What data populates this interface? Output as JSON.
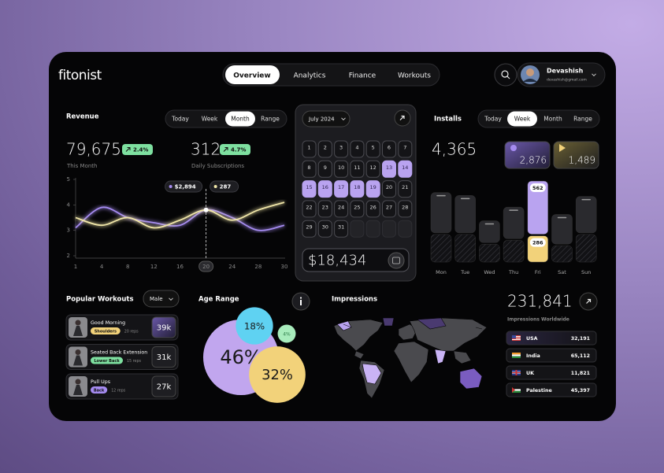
{
  "header": {
    "logo": "fitonist",
    "nav": [
      "Overview",
      "Analytics",
      "Finance",
      "Workouts"
    ],
    "nav_active": 0,
    "user": {
      "name": "Devashish",
      "email": "devashish@gmail.com"
    }
  },
  "revenue": {
    "title": "Revenue",
    "tabs": [
      "Today",
      "Week",
      "Month",
      "Range"
    ],
    "tab_active": 2,
    "kpis": [
      {
        "value": "79,675",
        "change": "2.4%",
        "label": "This Month"
      },
      {
        "value": "312",
        "change": "4.7%",
        "label": "Daily Subscriptions"
      }
    ]
  },
  "calendar": {
    "month": "July 2024",
    "days": [
      1,
      2,
      3,
      4,
      5,
      6,
      7,
      8,
      9,
      10,
      11,
      12,
      13,
      14,
      15,
      16,
      17,
      18,
      19,
      20,
      21,
      22,
      23,
      24,
      25,
      26,
      27,
      28,
      29,
      30,
      31
    ],
    "range": [
      13,
      19
    ],
    "total": "$18,434"
  },
  "installs": {
    "title": "Installs",
    "tabs": [
      "Today",
      "Week",
      "Month",
      "Range"
    ],
    "tab_active": 1,
    "total": "4,365",
    "stores": [
      {
        "value": "2,876"
      },
      {
        "value": "1,489"
      }
    ]
  },
  "workouts": {
    "title": "Popular Workouts",
    "filter": "Male",
    "items": [
      {
        "name": "Good Morning",
        "tag": "Shoulders",
        "tag_color": "#f2d27a",
        "reps": "20 reps",
        "count": "39k"
      },
      {
        "name": "Seated Back Extension",
        "tag": "Lower Back",
        "tag_color": "#7ee0a0",
        "reps": "15 reps",
        "count": "31k"
      },
      {
        "name": "Pull Ups",
        "tag": "Back",
        "tag_color": "#a58bf0",
        "reps": "12 reps",
        "count": "27k"
      }
    ]
  },
  "age_range": {
    "title": "Age Range"
  },
  "impressions": {
    "title": "Impressions",
    "total": "231,841",
    "subtitle": "Impressions Worldwide",
    "countries": [
      {
        "name": "USA",
        "value": "32,191"
      },
      {
        "name": "India",
        "value": "65,112"
      },
      {
        "name": "UK",
        "value": "11,821"
      },
      {
        "name": "Palestine",
        "value": "45,397"
      }
    ]
  },
  "chart_data": [
    {
      "type": "line",
      "categories": [
        "1",
        "4",
        "8",
        "12",
        "16",
        "20",
        "24",
        "28",
        "30"
      ],
      "series": [
        {
          "color": "#a58bf0",
          "values": [
            3.1,
            3.9,
            3.5,
            3.3,
            3.2,
            3.8,
            3.5,
            3.0,
            3.2
          ]
        },
        {
          "color": "#f0e6a8",
          "values": [
            3.5,
            3.2,
            3.5,
            3.1,
            3.4,
            3.8,
            3.4,
            3.8,
            4.1
          ]
        }
      ],
      "ylim": [
        2,
        5
      ],
      "yticks": [
        2,
        3,
        4,
        5
      ],
      "selected": 5,
      "annotations": [
        "$2,894",
        "287"
      ]
    },
    {
      "type": "bar",
      "stacked": true,
      "categories": [
        "Mon",
        "Tue",
        "Wed",
        "Thu",
        "Fri",
        "Sat",
        "Sun"
      ],
      "series": [
        {
          "values": [
            300,
            300,
            200,
            240,
            286,
            185,
            300
          ],
          "colors": [
            "url(#hatch)",
            "url(#hatch)",
            "url(#hatch)",
            "url(#hatch)",
            "#f2d27a",
            "url(#hatch)",
            "url(#hatch)"
          ],
          "value_labels": [
            null,
            null,
            null,
            null,
            "286",
            null,
            null
          ]
        },
        {
          "values": [
            430,
            400,
            240,
            340,
            562,
            320,
            390
          ],
          "colors": [
            "#2a2a2e",
            "#2a2a2e",
            "#2a2a2e",
            "#2a2a2e",
            "#b9a3f0",
            "#2a2a2e",
            "#2a2a2e"
          ],
          "value_labels": [
            null,
            null,
            null,
            null,
            "562",
            null,
            null
          ]
        }
      ]
    },
    {
      "type": "bubble",
      "values": [
        46,
        32,
        18,
        4
      ],
      "value_labels": [
        "46%",
        "32%",
        "18%",
        "4%"
      ],
      "colors": [
        "#c1a6ee",
        "#f2d27a",
        "#5fd2f2",
        "#a8ecbc"
      ]
    }
  ]
}
